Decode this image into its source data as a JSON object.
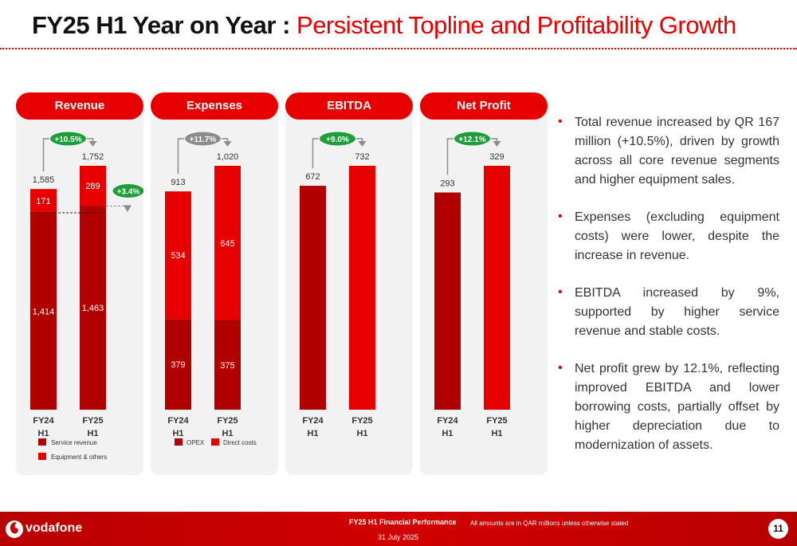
{
  "title": {
    "main": "FY25 H1 Year on Year",
    "separator": " : ",
    "subtitle": "Persistent Topline and Profitability Growth"
  },
  "chart_data": [
    {
      "type": "bar",
      "stacked": true,
      "title": "Revenue",
      "categories": [
        "FY24 H1",
        "FY25 H1"
      ],
      "series": [
        {
          "name": "Service revenue",
          "values": [
            1414,
            1463
          ],
          "color": "#b00000"
        },
        {
          "name": "Equipment & others",
          "values": [
            171,
            289
          ],
          "color": "#e60000"
        }
      ],
      "totals": [
        1585,
        1752
      ],
      "growth_label": "+10.5%",
      "secondary_growth_label": "+3.4%",
      "ylim": [
        0,
        1800
      ]
    },
    {
      "type": "bar",
      "stacked": true,
      "title": "Expenses",
      "categories": [
        "FY24 H1",
        "FY25 H1"
      ],
      "series": [
        {
          "name": "OPEX",
          "values": [
            379,
            375
          ],
          "color": "#b00000"
        },
        {
          "name": "Direct costs",
          "values": [
            534,
            645
          ],
          "color": "#e60000"
        }
      ],
      "totals": [
        913,
        1020
      ],
      "growth_label": "+11.7%",
      "ylim": [
        0,
        1800
      ]
    },
    {
      "type": "bar",
      "stacked": false,
      "title": "EBITDA",
      "categories": [
        "FY24 H1",
        "FY25 H1"
      ],
      "series": [
        {
          "values": [
            672,
            732
          ]
        }
      ],
      "series_colors": [
        "#b00000",
        "#e60000"
      ],
      "totals": [
        672,
        732
      ],
      "growth_label": "+9.0%",
      "ylim": [
        0,
        800
      ]
    },
    {
      "type": "bar",
      "stacked": false,
      "title": "Net Profit",
      "categories": [
        "FY24 H1",
        "FY25 H1"
      ],
      "series": [
        {
          "values": [
            293,
            329
          ]
        }
      ],
      "series_colors": [
        "#b00000",
        "#e60000"
      ],
      "totals": [
        293,
        329
      ],
      "growth_label": "+12.1%",
      "ylim": [
        0,
        360
      ]
    }
  ],
  "bullets": [
    "Total revenue increased by QR 167 million (+10.5%), driven by growth across all core revenue segments and higher equipment sales.",
    "Expenses (excluding equipment costs) were lower, despite the increase in revenue.",
    "EBITDA increased by 9%, supported by higher service revenue and stable costs.",
    "Net profit grew by 12.1%, reflecting improved EBITDA and lower borrowing costs, partially offset by higher depreciation due to modernization of assets."
  ],
  "footer": {
    "brand": "vodafone",
    "title": "FY25 H1 Financial Performance",
    "date": "31 July 2025",
    "note": "All amounts are in QAR millions unless otherwise stated",
    "page": "11"
  },
  "colors": {
    "accent": "#e60000",
    "dark": "#b00000",
    "growth_badge_green": "#1e9e3a",
    "growth_badge_gray": "#8c8c8c"
  }
}
